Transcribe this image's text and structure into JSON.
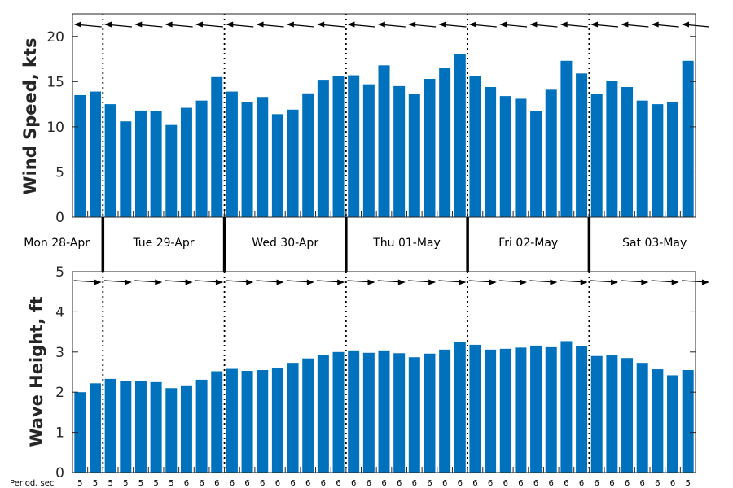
{
  "chart_data": [
    {
      "type": "bar",
      "ylabel": "Wind Speed, kts",
      "ylim": [
        0,
        22.5
      ],
      "yticks": [
        0,
        5,
        10,
        15,
        20
      ],
      "color": "#0072BD",
      "values": [
        13.5,
        13.9,
        12.5,
        10.6,
        11.8,
        11.7,
        10.2,
        12.1,
        12.9,
        15.5,
        13.9,
        12.7,
        13.3,
        11.4,
        11.9,
        13.7,
        15.2,
        15.6,
        15.7,
        14.7,
        16.8,
        14.5,
        13.6,
        15.3,
        16.5,
        18.0,
        15.6,
        14.4,
        13.4,
        13.1,
        11.7,
        14.1,
        17.3,
        15.9,
        13.6,
        15.1,
        14.4,
        12.9,
        12.5,
        12.7,
        17.3
      ],
      "direction_arrows": "pointing left (easterly wind)"
    },
    {
      "type": "bar",
      "ylabel": "Wave Height, ft",
      "ylim": [
        0,
        5
      ],
      "yticks": [
        0,
        1,
        2,
        3,
        4,
        5
      ],
      "color": "#0072BD",
      "values": [
        2.0,
        2.22,
        2.33,
        2.28,
        2.28,
        2.25,
        2.1,
        2.17,
        2.31,
        2.52,
        2.58,
        2.53,
        2.55,
        2.6,
        2.73,
        2.84,
        2.93,
        3.0,
        3.04,
        2.98,
        3.04,
        2.97,
        2.87,
        2.96,
        3.06,
        3.25,
        3.18,
        3.06,
        3.08,
        3.11,
        3.16,
        3.12,
        3.27,
        3.15,
        2.9,
        2.93,
        2.85,
        2.73,
        2.57,
        2.42,
        2.55
      ],
      "period_label": "Period, sec",
      "periods": [
        "5",
        "5",
        "5",
        "5",
        "5",
        "5",
        "5",
        "6",
        "6",
        "6",
        "6",
        "6",
        "6",
        "6",
        "6",
        "6",
        "6",
        "6",
        "6",
        "6",
        "6",
        "6",
        "6",
        "6",
        "6",
        "6",
        "6",
        "6",
        "6",
        "6",
        "6",
        "6",
        "6",
        "6",
        "6",
        "6",
        "6",
        "6",
        "6",
        "6",
        "5"
      ],
      "direction_arrows": "pointing right"
    }
  ],
  "days": [
    "Mon 28-Apr",
    "Tue 29-Apr",
    "Wed 30-Apr",
    "Thu 01-May",
    "Fri 02-May",
    "Sat 03-May"
  ],
  "day_boundaries_after_bar": [
    1,
    9,
    17,
    25,
    33
  ]
}
